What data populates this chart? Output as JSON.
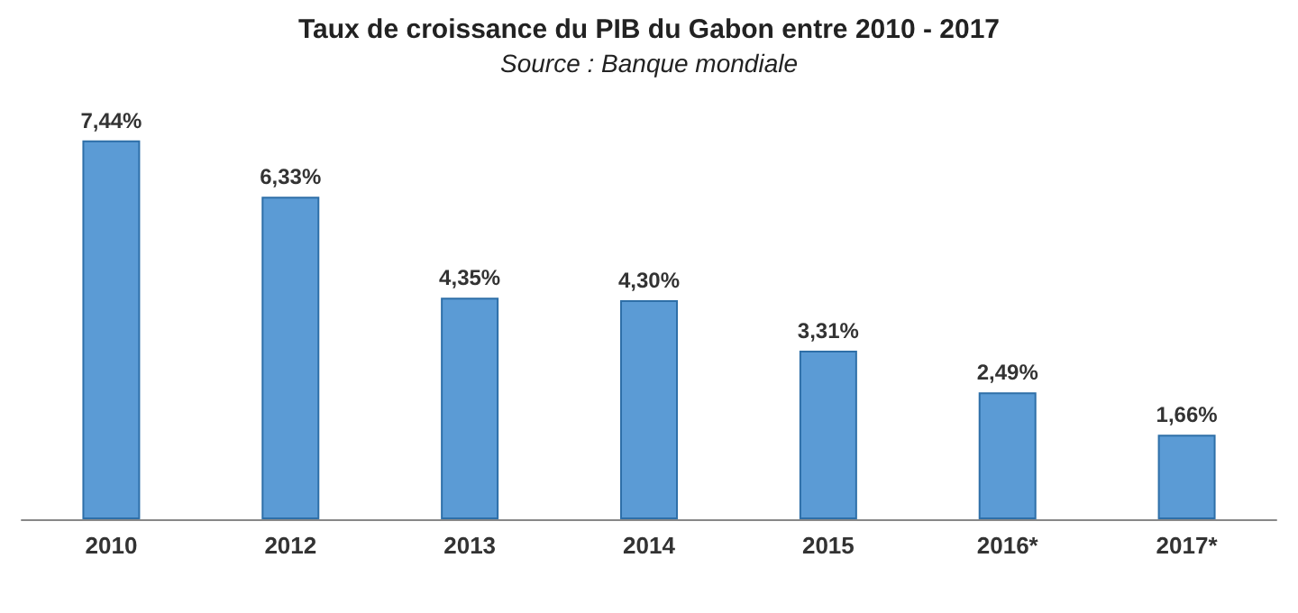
{
  "chart_data": {
    "type": "bar",
    "title": "Taux de croissance du PIB du Gabon entre 2010 - 2017",
    "subtitle": "Source : Banque mondiale",
    "categories": [
      "2010",
      "2012",
      "2013",
      "2014",
      "2015",
      "2016*",
      "2017*"
    ],
    "values": [
      7.44,
      6.33,
      4.35,
      4.3,
      3.31,
      2.49,
      1.66
    ],
    "value_labels": [
      "7,44%",
      "6,33%",
      "4,35%",
      "4,30%",
      "3,31%",
      "2,49%",
      "1,66%"
    ],
    "color": "#5b9bd5"
  }
}
